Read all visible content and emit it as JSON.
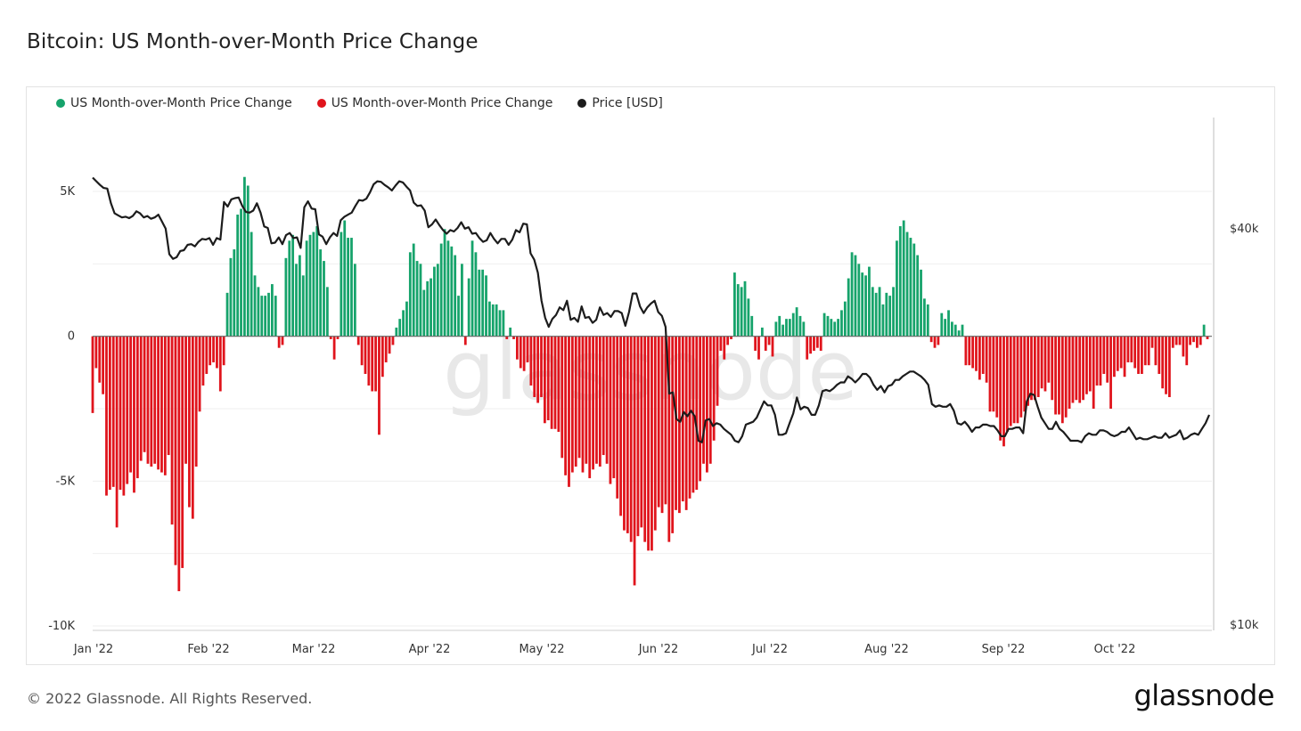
{
  "title": "Bitcoin: US Month-over-Month Price Change",
  "legend": [
    {
      "label": "US Month-over-Month Price Change",
      "color": "#16a36b"
    },
    {
      "label": "US Month-over-Month Price Change",
      "color": "#e0141c"
    },
    {
      "label": "Price [USD]",
      "color": "#1c1c1c"
    }
  ],
  "footer": {
    "copyright": "© 2022 Glassnode. All Rights Reserved.",
    "brand": "glassnode"
  },
  "watermark": "glassnode",
  "chart_data": {
    "type": "bar",
    "title": "Bitcoin: US Month-over-Month Price Change",
    "y_left_ticks": [
      "5K",
      "0",
      "-5K",
      "-10K"
    ],
    "y_left_range": [
      -10000,
      5000
    ],
    "y_right_ticks": [
      "$40k",
      "$10k"
    ],
    "y_right_scale": "log",
    "x_ticks": [
      "Jan '22",
      "Feb '22",
      "Mar '22",
      "Apr '22",
      "May '22",
      "Jun '22",
      "Jul '22",
      "Aug '22",
      "Sep '22",
      "Oct '22"
    ],
    "grid": true,
    "legend_position": "top-left",
    "colors": {
      "positive": "#16a36b",
      "negative": "#e0141c",
      "price": "#1c1c1c"
    },
    "bars": [
      -2650,
      -1100,
      -1600,
      -2000,
      -5500,
      -5300,
      -5200,
      -6600,
      -5300,
      -5500,
      -5100,
      -4700,
      -5400,
      -4900,
      -4300,
      -4000,
      -4400,
      -4500,
      -4400,
      -4600,
      -4700,
      -4800,
      -4100,
      -6500,
      -7900,
      -8800,
      -8000,
      -4400,
      -5900,
      -6300,
      -4500,
      -2600,
      -1700,
      -1300,
      -1000,
      -900,
      -1100,
      -1900,
      -1000,
      1500,
      2700,
      3000,
      4200,
      4400,
      5500,
      5200,
      3600,
      2100,
      1700,
      1400,
      1400,
      1500,
      1800,
      1400,
      -400,
      -300,
      2700,
      3300,
      3500,
      2500,
      2800,
      2100,
      3300,
      3500,
      3600,
      3800,
      3000,
      2600,
      1700,
      -100,
      -800,
      -100,
      3600,
      4000,
      3400,
      3400,
      2500,
      -300,
      -1000,
      -1300,
      -1700,
      -1900,
      -1900,
      -3400,
      -1400,
      -900,
      -600,
      -300,
      300,
      600,
      900,
      1200,
      2900,
      3200,
      2600,
      2500,
      1600,
      1900,
      2000,
      2400,
      2500,
      3200,
      3700,
      3300,
      3100,
      2800,
      1400,
      2500,
      -300,
      2000,
      3300,
      2900,
      2300,
      2300,
      2100,
      1200,
      1100,
      1100,
      900,
      900,
      -100,
      300,
      -100,
      -800,
      -1100,
      -1200,
      -900,
      -1700,
      -2100,
      -2300,
      -2100,
      -3000,
      -2900,
      -3200,
      -3200,
      -3300,
      -4200,
      -4800,
      -5200,
      -4700,
      -4500,
      -4200,
      -4700,
      -4400,
      -4900,
      -4600,
      -4400,
      -4500,
      -4100,
      -4400,
      -5100,
      -4900,
      -5600,
      -6200,
      -6700,
      -6800,
      -7100,
      -8600,
      -6900,
      -6600,
      -7100,
      -7400,
      -7400,
      -6700,
      -5900,
      -6100,
      -5800,
      -7100,
      -6800,
      -6000,
      -6100,
      -5700,
      -6000,
      -5600,
      -5400,
      -5300,
      -5000,
      -4400,
      -4700,
      -4400,
      -3600,
      -2400,
      -500,
      -800,
      -300,
      -100,
      2200,
      1800,
      1700,
      1900,
      1300,
      700,
      -500,
      -800,
      300,
      -500,
      -300,
      -700,
      500,
      700,
      400,
      600,
      600,
      800,
      1000,
      700,
      500,
      -800,
      -600,
      -500,
      -400,
      -500,
      800,
      700,
      600,
      500,
      600,
      900,
      1200,
      2000,
      2900,
      2800,
      2500,
      2200,
      2100,
      2400,
      1700,
      1500,
      1700,
      1100,
      1500,
      1400,
      1700,
      3300,
      3800,
      4000,
      3600,
      3400,
      3200,
      2800,
      2300,
      1300,
      1100,
      -200,
      -400,
      -300,
      800,
      600,
      900,
      500,
      400,
      200,
      400,
      -1000,
      -1000,
      -1100,
      -1200,
      -1500,
      -1300,
      -1600,
      -2600,
      -2600,
      -2800,
      -3600,
      -3800,
      -3300,
      -3100,
      -3000,
      -3000,
      -2800,
      -2600,
      -2400,
      -2200,
      -2200,
      -2100,
      -1800,
      -1900,
      -1600,
      -2200,
      -2700,
      -2700,
      -3000,
      -2800,
      -2500,
      -2300,
      -2200,
      -2300,
      -2200,
      -2000,
      -1900,
      -2500,
      -1700,
      -1700,
      -1300,
      -1600,
      -2500,
      -1400,
      -1200,
      -1100,
      -1400,
      -900,
      -900,
      -1100,
      -1300,
      -1300,
      -1000,
      -1000,
      -400,
      -1000,
      -1300,
      -1800,
      -2000,
      -2100,
      -400,
      -300,
      -300,
      -700,
      -1000,
      -300,
      -200,
      -400,
      -300,
      400,
      -100
    ],
    "price": [
      47700,
      47100,
      46500,
      46000,
      45900,
      43600,
      42100,
      41800,
      41500,
      41600,
      41400,
      41700,
      42400,
      42100,
      41500,
      41700,
      41300,
      41500,
      41900,
      40900,
      39900,
      36500,
      35900,
      36100,
      36900,
      37000,
      37700,
      37800,
      37500,
      38100,
      38500,
      38400,
      38600,
      37700,
      38600,
      38400,
      43800,
      43100,
      44200,
      44400,
      44500,
      43200,
      42300,
      42200,
      42500,
      43600,
      42200,
      40200,
      40000,
      37900,
      38000,
      38700,
      37800,
      39000,
      39300,
      38600,
      38700,
      37300,
      43000,
      43900,
      42800,
      42700,
      39100,
      38800,
      37800,
      38700,
      39300,
      38900,
      41100,
      41600,
      41900,
      42200,
      43200,
      44100,
      44000,
      44300,
      45300,
      46600,
      47100,
      47000,
      46500,
      46100,
      45600,
      46400,
      47100,
      46900,
      46200,
      45600,
      43700,
      43200,
      43300,
      42500,
      40100,
      40500,
      41200,
      40400,
      39700,
      39200,
      39700,
      39500,
      40000,
      40800,
      39900,
      40100,
      39200,
      39300,
      38600,
      38100,
      38300,
      39300,
      38500,
      37900,
      38500,
      38500,
      37700,
      38400,
      39700,
      39400,
      40600,
      40500,
      36600,
      35800,
      34200,
      31000,
      29200,
      28300,
      29100,
      29500,
      30300,
      30000,
      31000,
      29000,
      29200,
      28800,
      30400,
      29200,
      29300,
      28700,
      29000,
      30300,
      29500,
      29700,
      29300,
      29900,
      29900,
      29700,
      28400,
      29800,
      31800,
      31800,
      30400,
      29700,
      30300,
      30700,
      31000,
      29800,
      29400,
      28300,
      22400,
      22500,
      20500,
      20300,
      21000,
      20700,
      21100,
      20700,
      19000,
      18900,
      20400,
      20500,
      20000,
      20200,
      20100,
      19800,
      19600,
      19400,
      19000,
      18900,
      19300,
      20100,
      20200,
      20300,
      20600,
      21200,
      21800,
      21500,
      21500,
      20800,
      19400,
      19400,
      19500,
      20200,
      20900,
      22100,
      21200,
      21400,
      21300,
      20800,
      20800,
      21500,
      22600,
      22700,
      22600,
      22800,
      23100,
      23300,
      23300,
      23800,
      23600,
      23300,
      23600,
      24000,
      24000,
      23700,
      23100,
      22700,
      23000,
      22500,
      23000,
      23100,
      23500,
      23500,
      23800,
      24000,
      24200,
      24200,
      24000,
      23800,
      23500,
      23100,
      21600,
      21400,
      21500,
      21400,
      21400,
      21600,
      21100,
      20200,
      20100,
      20300,
      20000,
      19600,
      19900,
      19900,
      20100,
      20100,
      20000,
      20000,
      19700,
      19300,
      19300,
      19800,
      19800,
      19900,
      19900,
      19500,
      21800,
      22400,
      22300,
      21400,
      20600,
      20200,
      19800,
      19800,
      20300,
      19800,
      19600,
      19300,
      19000,
      19000,
      19000,
      18900,
      19300,
      19500,
      19400,
      19400,
      19700,
      19700,
      19600,
      19400,
      19300,
      19400,
      19600,
      19600,
      19900,
      19500,
      19100,
      19200,
      19100,
      19100,
      19200,
      19300,
      19200,
      19200,
      19500,
      19200,
      19300,
      19400,
      19700,
      19100,
      19200,
      19400,
      19500,
      19400,
      19800,
      20200,
      20800
    ]
  }
}
